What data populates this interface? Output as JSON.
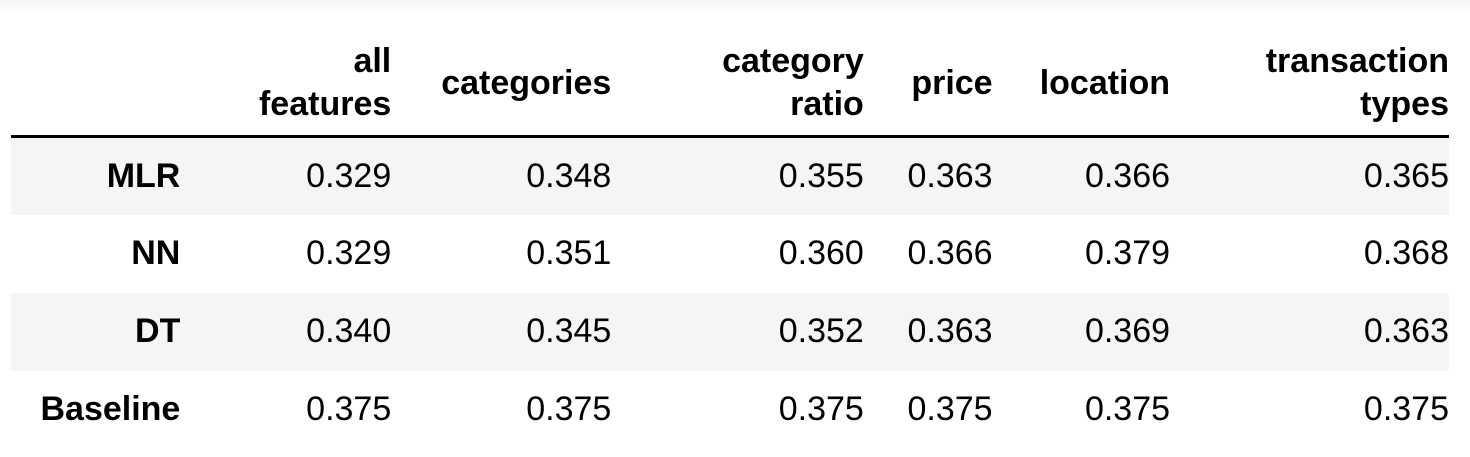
{
  "table": {
    "columns": [
      {
        "lines": [
          "all",
          "features"
        ]
      },
      {
        "lines": [
          "categories"
        ]
      },
      {
        "lines": [
          "category",
          "ratio"
        ]
      },
      {
        "lines": [
          "price"
        ]
      },
      {
        "lines": [
          "location"
        ]
      },
      {
        "lines": [
          "transaction",
          "types"
        ]
      }
    ],
    "rows": [
      {
        "label": "MLR",
        "values": [
          "0.329",
          "0.348",
          "0.355",
          "0.363",
          "0.366",
          "0.365"
        ]
      },
      {
        "label": "NN",
        "values": [
          "0.329",
          "0.351",
          "0.360",
          "0.366",
          "0.379",
          "0.368"
        ]
      },
      {
        "label": "DT",
        "values": [
          "0.340",
          "0.345",
          "0.352",
          "0.363",
          "0.369",
          "0.363"
        ]
      },
      {
        "label": "Baseline",
        "values": [
          "0.375",
          "0.375",
          "0.375",
          "0.375",
          "0.375",
          "0.375"
        ]
      }
    ]
  }
}
